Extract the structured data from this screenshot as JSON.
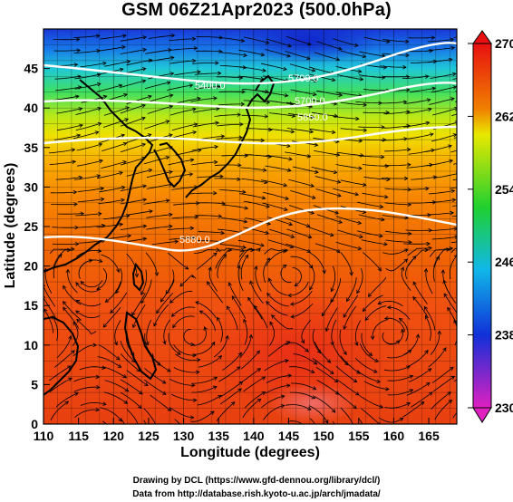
{
  "title": "GSM 06Z21Apr2023 (500.0hPa)",
  "axes": {
    "xlabel": "Longitude (degrees)",
    "ylabel": "Latitude  (degrees)",
    "x_ticks": [
      "110",
      "115",
      "120",
      "125",
      "130",
      "135",
      "140",
      "145",
      "150",
      "155",
      "160",
      "165"
    ],
    "y_ticks": [
      "0",
      "5",
      "10",
      "15",
      "20",
      "25",
      "30",
      "35",
      "40",
      "45"
    ]
  },
  "colorbar": {
    "labels": [
      "270",
      "262",
      "254",
      "246",
      "238",
      "230"
    ]
  },
  "contour_labels": [
    "5400.0",
    "5700.0",
    "5700.0",
    "5850.0",
    "5880.0"
  ],
  "credits": {
    "line1": "Drawing by DCL (https://www.gfd-dennou.org/library/dcl/)",
    "line2": "Data from http://database.rish.kyoto-u.ac.jp/arch/jmadata/"
  },
  "chart_data": {
    "type": "heatmap",
    "title": "GSM 06Z21Apr2023 (500.0hPa)",
    "xlabel": "Longitude (degrees)",
    "ylabel": "Latitude  (degrees)",
    "xlim": [
      110,
      169
    ],
    "ylim": [
      0,
      50
    ],
    "variable_range": [
      230,
      270
    ],
    "colorbar_ticks": [
      230,
      238,
      246,
      254,
      262,
      270
    ],
    "colormap_stops": [
      {
        "value": 230,
        "color": "#e020c0"
      },
      {
        "value": 238,
        "color": "#1030d8"
      },
      {
        "value": 246,
        "color": "#10b8e8"
      },
      {
        "value": 254,
        "color": "#20d030"
      },
      {
        "value": 262,
        "color": "#e8e800"
      },
      {
        "value": 270,
        "color": "#e81010"
      }
    ],
    "temperature_by_latitude": [
      {
        "lat": 0,
        "value": 269
      },
      {
        "lat": 10,
        "value": 268.5
      },
      {
        "lat": 20,
        "value": 268
      },
      {
        "lat": 25,
        "value": 267
      },
      {
        "lat": 30,
        "value": 266
      },
      {
        "lat": 35,
        "value": 264
      },
      {
        "lat": 38,
        "value": 262
      },
      {
        "lat": 42,
        "value": 256
      },
      {
        "lat": 45,
        "value": 248
      },
      {
        "lat": 48,
        "value": 240
      },
      {
        "lat": 50,
        "value": 236
      }
    ],
    "height_contours": [
      {
        "label": "5400.0",
        "value": 5400
      },
      {
        "label": "5700.0",
        "value": 5700
      },
      {
        "label": "5850.0",
        "value": 5850
      },
      {
        "label": "5880.0",
        "value": 5880
      }
    ],
    "grid": true,
    "overlays": [
      "wind streamlines",
      "coastlines"
    ]
  }
}
